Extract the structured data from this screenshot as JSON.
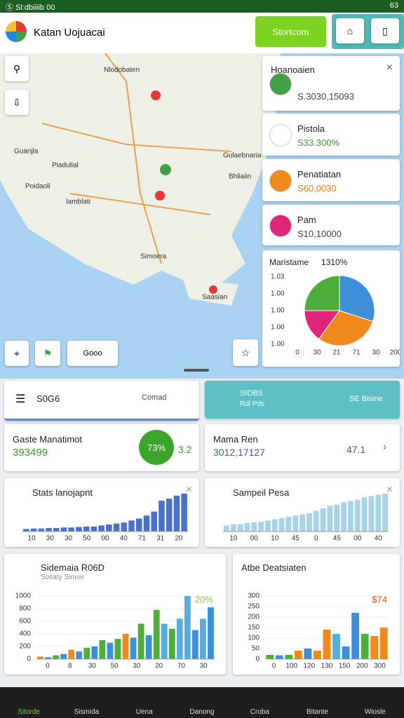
{
  "status_bar": {
    "left": "Ⓢ Sl:dbiiiib 00",
    "right": "63"
  },
  "app_bar": {
    "title": "Katan Uojuacai",
    "button": "Stortcom"
  },
  "map": {
    "labels": [
      "Nlodobaten",
      "Guanjla",
      "Piadulial",
      "Poidaoli",
      "Iamblati",
      "Gulaebnaria",
      "Bhliaiin",
      "Simoera",
      "Saasian"
    ]
  },
  "map_tools": {
    "route_label": "Gooo"
  },
  "places": [
    {
      "title": "Hoanoaien",
      "value": "S.3030,15093"
    },
    {
      "title": "Pistola",
      "value": "S33.300%"
    },
    {
      "title": "Penatiatan",
      "value": "S60,0030"
    },
    {
      "title": "Pam",
      "value": "S10,10000"
    }
  ],
  "map_chart": {
    "type": "pie",
    "title": "Maristame",
    "value": "1310%",
    "values": [
      30,
      30,
      15,
      25
    ],
    "colors": [
      "#3d8fd9",
      "#f08a1c",
      "#e0267a",
      "#4caf3a"
    ],
    "y_labels": [
      "1.03",
      "1.00",
      "1.00",
      "1.00",
      "1.00"
    ],
    "x_labels": [
      "0",
      "30",
      "21",
      "71",
      "30",
      "200"
    ]
  },
  "summary": {
    "left": {
      "title": "S0G6",
      "note": "Comad"
    },
    "right": {
      "title": "SIDBS",
      "subtitle": "Rdl Pds",
      "note": "SE Blsine"
    }
  },
  "kpis": [
    {
      "title": "Gaste Manatimot",
      "value": "393499",
      "badge": "73%",
      "extra": "3.2"
    },
    {
      "title": "Mama Ren",
      "value": "3012,17127",
      "extra": "47.1"
    }
  ],
  "charts": [
    {
      "type": "bar",
      "title": "Stats lanojapnt",
      "color": "#4a72c8",
      "values": [
        5,
        6,
        6,
        7,
        7,
        8,
        8,
        9,
        10,
        10,
        12,
        14,
        16,
        18,
        22,
        26,
        32,
        40,
        62,
        66,
        72,
        76
      ],
      "x_labels": [
        "10",
        "30",
        "30",
        "50",
        "00",
        "40",
        "71",
        "31",
        "20"
      ]
    },
    {
      "type": "bar",
      "title": "Sampeil Pesa",
      "color": "#a9d4e8",
      "values": [
        10,
        12,
        12,
        14,
        15,
        16,
        18,
        20,
        22,
        24,
        26,
        28,
        30,
        34,
        38,
        42,
        44,
        48,
        50,
        52,
        56,
        58,
        60,
        62
      ],
      "x_labels": [
        "10",
        "00",
        "10",
        "45",
        "0",
        "45",
        "00",
        "40"
      ]
    },
    {
      "type": "bar",
      "title": "Sidemaia R06D",
      "subtitle": "Sosaty Simon",
      "annotation": "20%",
      "ylim": [
        0,
        1000
      ],
      "yticks": [
        0,
        200,
        400,
        600,
        800,
        1000
      ],
      "values": [
        40,
        30,
        60,
        80,
        150,
        120,
        180,
        200,
        300,
        260,
        320,
        400,
        340,
        560,
        380,
        780,
        560,
        480,
        640,
        1000,
        460,
        640,
        820
      ],
      "colors": [
        "#f08a1c",
        "#3d8fd9",
        "#4caf3a",
        "#3d8fd9",
        "#f08a1c",
        "#3d8fd9",
        "#4caf3a",
        "#3d8fd9",
        "#4caf3a",
        "#3d8fd9",
        "#4caf3a",
        "#f08a1c",
        "#3d8fd9",
        "#4caf3a",
        "#3d8fd9",
        "#4caf3a",
        "#56aee0",
        "#4caf3a",
        "#56aee0",
        "#56aee0",
        "#3d8fd9",
        "#56aee0",
        "#3d8fd9"
      ],
      "x_labels": [
        "0",
        "8",
        "30",
        "50",
        "30",
        "20",
        "70",
        "30"
      ]
    },
    {
      "type": "bar",
      "title": "Atbe Deatsiaten",
      "annotation": "$74",
      "ylim": [
        0,
        300
      ],
      "yticks": [
        0,
        50,
        100,
        150,
        200,
        250,
        300
      ],
      "values": [
        20,
        18,
        20,
        40,
        50,
        40,
        140,
        120,
        60,
        220,
        120,
        110,
        150
      ],
      "colors": [
        "#4caf3a",
        "#3d8fd9",
        "#4caf3a",
        "#f08a1c",
        "#3d8fd9",
        "#f08a1c",
        "#f08a1c",
        "#56aee0",
        "#3d8fd9",
        "#3d8fd9",
        "#4caf3a",
        "#f08a1c",
        "#f08a1c"
      ],
      "x_labels": [
        "0",
        "100",
        "120",
        "130",
        "150",
        "200",
        "300"
      ]
    }
  ],
  "nav": [
    "Sitorde",
    "Sismida",
    "Uena",
    "Danong",
    "Croba",
    "Bitante",
    "Wiosle"
  ]
}
